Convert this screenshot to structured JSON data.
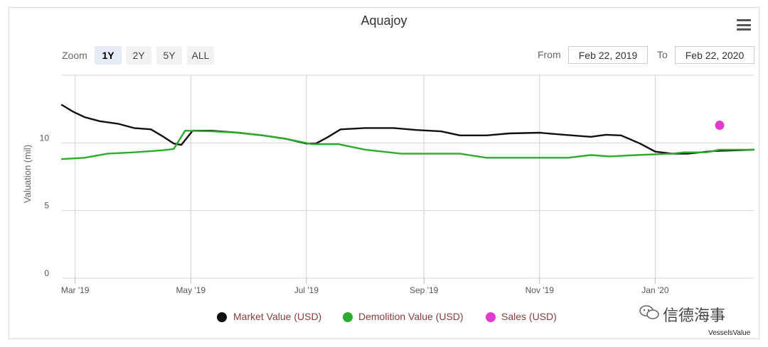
{
  "chart_data": {
    "type": "line",
    "title": "Aquajoy",
    "ylabel": "Valuation (mil)",
    "ylim": [
      0,
      15
    ],
    "yticks": [
      "0",
      "5",
      "10"
    ],
    "xticks": [
      "Mar '19",
      "May '19",
      "Jul '19",
      "Sep '19",
      "Nov '19",
      "Jan '20"
    ],
    "grid": true,
    "legend_position": "bottom",
    "series": [
      {
        "name": "Market Value (USD)",
        "color": "#111111",
        "points": [
          [
            "2019-02-22",
            12.8
          ],
          [
            "2019-02-28",
            12.3
          ],
          [
            "2019-03-06",
            11.9
          ],
          [
            "2019-03-14",
            11.6
          ],
          [
            "2019-03-24",
            11.4
          ],
          [
            "2019-04-01",
            11.1
          ],
          [
            "2019-04-10",
            11.0
          ],
          [
            "2019-04-16",
            10.5
          ],
          [
            "2019-04-22",
            9.95
          ],
          [
            "2019-04-26",
            9.85
          ],
          [
            "2019-05-02",
            10.9
          ],
          [
            "2019-05-12",
            10.9
          ],
          [
            "2019-05-26",
            10.75
          ],
          [
            "2019-06-08",
            10.55
          ],
          [
            "2019-06-20",
            10.3
          ],
          [
            "2019-07-01",
            9.95
          ],
          [
            "2019-07-06",
            9.95
          ],
          [
            "2019-07-12",
            10.4
          ],
          [
            "2019-07-19",
            11.0
          ],
          [
            "2019-08-01",
            11.1
          ],
          [
            "2019-08-16",
            11.1
          ],
          [
            "2019-08-28",
            10.95
          ],
          [
            "2019-09-10",
            10.85
          ],
          [
            "2019-09-20",
            10.55
          ],
          [
            "2019-10-04",
            10.55
          ],
          [
            "2019-10-16",
            10.7
          ],
          [
            "2019-11-01",
            10.75
          ],
          [
            "2019-11-14",
            10.6
          ],
          [
            "2019-11-28",
            10.45
          ],
          [
            "2019-12-06",
            10.6
          ],
          [
            "2019-12-14",
            10.55
          ],
          [
            "2019-12-24",
            9.95
          ],
          [
            "2020-01-01",
            9.35
          ],
          [
            "2020-01-10",
            9.2
          ],
          [
            "2020-01-18",
            9.2
          ],
          [
            "2020-02-01",
            9.4
          ],
          [
            "2020-02-22",
            9.5
          ]
        ]
      },
      {
        "name": "Demolition Value (USD)",
        "color": "#2cac2c",
        "points": [
          [
            "2019-02-22",
            8.8
          ],
          [
            "2019-03-06",
            8.9
          ],
          [
            "2019-03-18",
            9.2
          ],
          [
            "2019-04-01",
            9.3
          ],
          [
            "2019-04-16",
            9.45
          ],
          [
            "2019-04-22",
            9.55
          ],
          [
            "2019-04-28",
            10.9
          ],
          [
            "2019-05-12",
            10.85
          ],
          [
            "2019-05-26",
            10.75
          ],
          [
            "2019-06-08",
            10.55
          ],
          [
            "2019-06-20",
            10.3
          ],
          [
            "2019-07-04",
            9.9
          ],
          [
            "2019-07-18",
            9.9
          ],
          [
            "2019-08-01",
            9.5
          ],
          [
            "2019-08-20",
            9.2
          ],
          [
            "2019-09-20",
            9.2
          ],
          [
            "2019-10-04",
            8.9
          ],
          [
            "2019-10-16",
            8.9
          ],
          [
            "2019-11-16",
            8.9
          ],
          [
            "2019-11-28",
            9.1
          ],
          [
            "2019-12-08",
            9.0
          ],
          [
            "2019-12-22",
            9.1
          ],
          [
            "2020-01-10",
            9.2
          ],
          [
            "2020-01-16",
            9.3
          ],
          [
            "2020-01-28",
            9.3
          ],
          [
            "2020-02-04",
            9.5
          ],
          [
            "2020-02-22",
            9.5
          ]
        ]
      },
      {
        "name": "Sales (USD)",
        "color": "#e23bcf",
        "points": [
          [
            "2020-02-04",
            11.3
          ]
        ]
      }
    ]
  },
  "toolbar": {
    "zoom_label": "Zoom",
    "zoom_buttons": [
      "1Y",
      "2Y",
      "5Y",
      "ALL"
    ],
    "zoom_selected": "1Y",
    "from_label": "From",
    "from_value": "Feb 22, 2019",
    "to_label": "To",
    "to_value": "Feb 22, 2020"
  },
  "watermark": "信德海事",
  "credit": "VesselsValue"
}
